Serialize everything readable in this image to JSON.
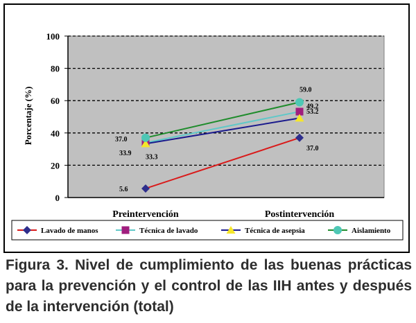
{
  "chart_data": {
    "type": "line",
    "categories": [
      "Preintervención",
      "Postintervención"
    ],
    "ylabel": "Porcentaje (%)",
    "xlabel": "",
    "ylim": [
      0,
      100
    ],
    "yticks": [
      0,
      20,
      40,
      60,
      80,
      100
    ],
    "grid": true,
    "legend_placement": "bottom",
    "series": [
      {
        "name": "Lavado de manos",
        "values": [
          5.6,
          37.0
        ],
        "labels": [
          "5.6",
          "37.0"
        ],
        "color": "#d91a1a",
        "marker_color": "#2e2e8c",
        "marker": "diamond"
      },
      {
        "name": "Técnica de lavado",
        "values": [
          33.9,
          53.2
        ],
        "labels": [
          "33.9",
          "53.2"
        ],
        "color": "#5fc8c8",
        "marker_color": "#a01e7e",
        "marker": "square"
      },
      {
        "name": "Técnica de asepsia",
        "values": [
          33.3,
          49.2
        ],
        "labels": [
          "33.3",
          "49.2"
        ],
        "color": "#1a1a8c",
        "marker_color": "#f5e62a",
        "marker": "triangle"
      },
      {
        "name": "Aislamiento",
        "values": [
          37.0,
          59.0
        ],
        "labels": [
          "37.0",
          "59.0"
        ],
        "color": "#1f8c2c",
        "marker_color": "#4ec7b5",
        "marker": "circle"
      }
    ]
  },
  "caption": "Figura 3. Nivel de cumplimiento de las buenas prácticas para la prevención y el control de las IIH antes y después de la intervención (total)"
}
